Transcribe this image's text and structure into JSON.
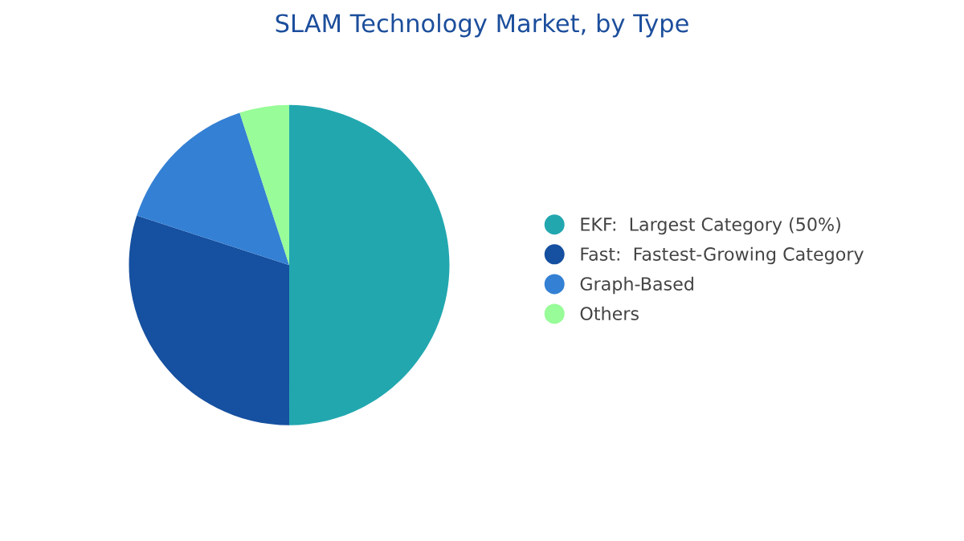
{
  "chart_data": {
    "type": "pie",
    "title": "SLAM Technology Market, by Type",
    "categories": [
      "EKF:  Largest Category (50%)",
      "Fast:  Fastest-Growing Category",
      "Graph-Based",
      "Others"
    ],
    "values": [
      50,
      30,
      15,
      5
    ],
    "colors": [
      "#22a7af",
      "#1650a0",
      "#3480d4",
      "#98fc98"
    ],
    "legend": "right"
  }
}
